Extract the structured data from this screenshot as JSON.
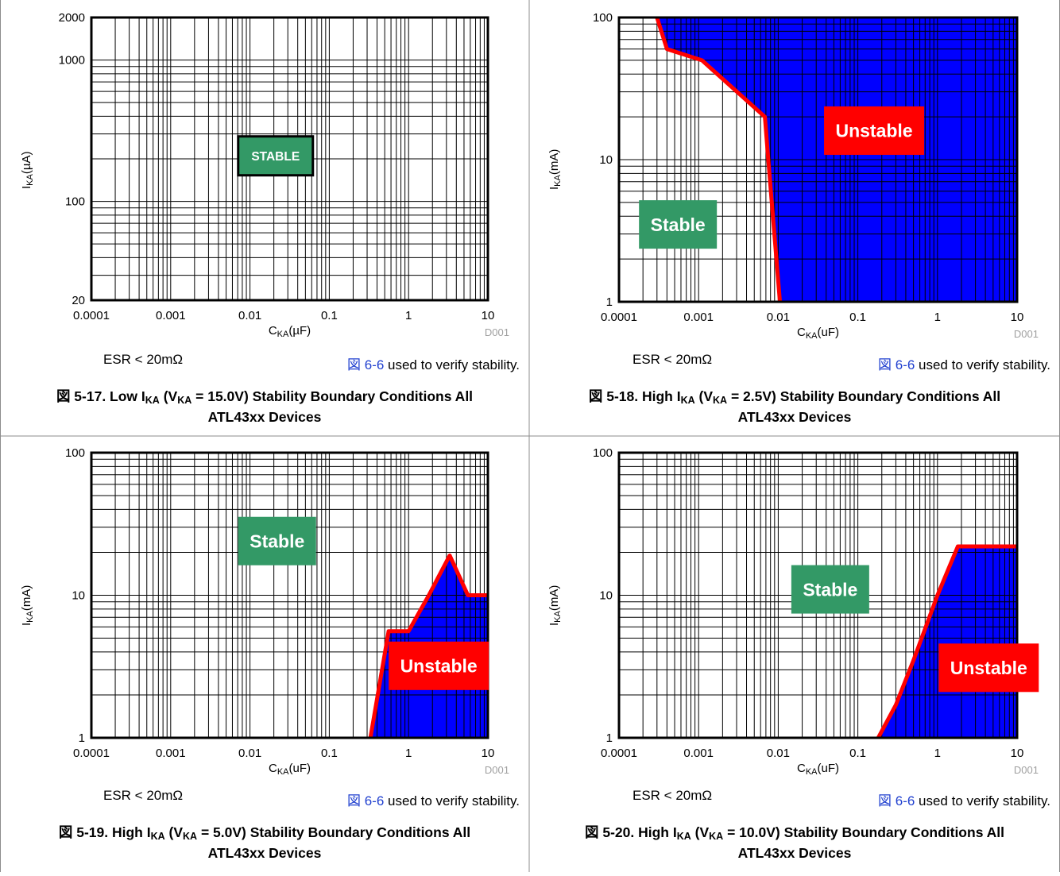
{
  "chart_data": [
    {
      "type": "area",
      "title_prefix": "図 5-17. Low I",
      "title_sub1": "KA",
      "title_mid": " (V",
      "title_sub2": "KA",
      "title_suffix": " = 15.0V) Stability Boundary Conditions All",
      "title_line2": "ATL43xx Devices",
      "xlabel_main": "C",
      "xlabel_sub": "KA",
      "xlabel_unit": "(µF)",
      "ylabel_main": "I",
      "ylabel_sub": "KA",
      "ylabel_unit": "(µA)",
      "x_scale": "log",
      "y_scale": "log",
      "xlim": [
        0.0001,
        10
      ],
      "ylim": [
        20,
        2000
      ],
      "x_ticks": [
        0.0001,
        0.001,
        0.01,
        0.1,
        1,
        10
      ],
      "x_tick_labels": [
        "0.0001",
        "0.001",
        "0.01",
        "0.1",
        "1",
        "10"
      ],
      "y_ticks": [
        20,
        100,
        1000,
        2000
      ],
      "y_tick_labels": [
        "20",
        "100",
        "1000",
        "2000"
      ],
      "unstable_boundary": [],
      "region_labels": [
        {
          "text": "STABLE",
          "style": "outlined",
          "x": 0.021,
          "y": 210
        }
      ],
      "grid": true,
      "watermark": "D001",
      "footnote_left": "ESR < 20mΩ",
      "footnote_ref": "図 6-6",
      "footnote_right": " used to verify stability."
    },
    {
      "type": "area",
      "title_prefix": "図 5-18. High I",
      "title_sub1": "KA",
      "title_mid": " (V",
      "title_sub2": "KA",
      "title_suffix": " = 2.5V) Stability Boundary Conditions All",
      "title_line2": "ATL43xx Devices",
      "xlabel_main": "C",
      "xlabel_sub": "KA",
      "xlabel_unit": "(uF)",
      "ylabel_main": "I",
      "ylabel_sub": "KA",
      "ylabel_unit": "(mA)",
      "x_scale": "log",
      "y_scale": "log",
      "xlim": [
        0.0001,
        10
      ],
      "ylim": [
        1,
        100
      ],
      "x_ticks": [
        0.0001,
        0.001,
        0.01,
        0.1,
        1,
        10
      ],
      "x_tick_labels": [
        "0.0001",
        "0.001",
        "0.01",
        "0.1",
        "1",
        "10"
      ],
      "y_ticks": [
        1,
        10,
        100
      ],
      "y_tick_labels": [
        "1",
        "10",
        "100"
      ],
      "unstable_fill_to": "top",
      "unstable_boundary": [
        [
          0.0003,
          100
        ],
        [
          0.0004,
          60
        ],
        [
          0.0011,
          50
        ],
        [
          0.0068,
          20
        ],
        [
          0.0075,
          10
        ],
        [
          0.0105,
          1
        ]
      ],
      "region_labels": [
        {
          "text": "Unstable",
          "style": "red",
          "x": 0.16,
          "y": 16
        },
        {
          "text": "Stable",
          "style": "green",
          "x": 0.00055,
          "y": 3.5
        }
      ],
      "grid": true,
      "watermark": "D001",
      "footnote_left": "ESR < 20mΩ",
      "footnote_ref": "図 6-6",
      "footnote_right": " used to verify stability."
    },
    {
      "type": "area",
      "title_prefix": "図 5-19. High I",
      "title_sub1": "KA",
      "title_mid": " (V",
      "title_sub2": "KA",
      "title_suffix": " = 5.0V) Stability Boundary Conditions All",
      "title_line2": "ATL43xx Devices",
      "xlabel_main": "C",
      "xlabel_sub": "KA",
      "xlabel_unit": "(uF)",
      "ylabel_main": "I",
      "ylabel_sub": "KA",
      "ylabel_unit": "(mA)",
      "x_scale": "log",
      "y_scale": "log",
      "xlim": [
        0.0001,
        10
      ],
      "ylim": [
        1,
        100
      ],
      "x_ticks": [
        0.0001,
        0.001,
        0.01,
        0.1,
        1,
        10
      ],
      "x_tick_labels": [
        "0.0001",
        "0.001",
        "0.01",
        "0.1",
        "1",
        "10"
      ],
      "y_ticks": [
        1,
        10,
        100
      ],
      "y_tick_labels": [
        "1",
        "10",
        "100"
      ],
      "unstable_fill_to": "bottom",
      "unstable_boundary": [
        [
          0.33,
          1
        ],
        [
          0.56,
          5.6
        ],
        [
          1.0,
          5.6
        ],
        [
          1.8,
          10
        ],
        [
          3.3,
          19
        ],
        [
          5.6,
          10
        ],
        [
          10,
          10
        ]
      ],
      "region_labels": [
        {
          "text": "Stable",
          "style": "green",
          "x": 0.022,
          "y": 24
        },
        {
          "text": "Unstable",
          "style": "red",
          "x": 2.4,
          "y": 3.2
        }
      ],
      "grid": true,
      "watermark": "D001",
      "footnote_left": "ESR < 20mΩ",
      "footnote_ref": "図 6-6",
      "footnote_right": " used to verify stability."
    },
    {
      "type": "area",
      "title_prefix": "図 5-20. High I",
      "title_sub1": "KA",
      "title_mid": " (V",
      "title_sub2": "KA",
      "title_suffix": " = 10.0V) Stability Boundary Conditions All",
      "title_line2": "ATL43xx Devices",
      "xlabel_main": "C",
      "xlabel_sub": "KA",
      "xlabel_unit": "(uF)",
      "ylabel_main": "I",
      "ylabel_sub": "KA",
      "ylabel_unit": "(mA)",
      "x_scale": "log",
      "y_scale": "log",
      "xlim": [
        0.0001,
        10
      ],
      "ylim": [
        1,
        100
      ],
      "x_ticks": [
        0.0001,
        0.001,
        0.01,
        0.1,
        1,
        10
      ],
      "x_tick_labels": [
        "0.0001",
        "0.001",
        "0.01",
        "0.1",
        "1",
        "10"
      ],
      "y_ticks": [
        1,
        10,
        100
      ],
      "y_tick_labels": [
        "1",
        "10",
        "100"
      ],
      "unstable_fill_to": "bottom",
      "unstable_boundary": [
        [
          0.18,
          1
        ],
        [
          0.3,
          1.7
        ],
        [
          0.5,
          3.5
        ],
        [
          1.0,
          10
        ],
        [
          1.8,
          22
        ],
        [
          10,
          22
        ]
      ],
      "region_labels": [
        {
          "text": "Stable",
          "style": "green",
          "x": 0.045,
          "y": 11
        },
        {
          "text": "Unstable",
          "style": "red",
          "x": 4.4,
          "y": 3.1
        }
      ],
      "grid": true,
      "watermark": "D001",
      "footnote_left": "ESR < 20mΩ",
      "footnote_ref": "図 6-6",
      "footnote_right": " used to verify stability."
    }
  ],
  "colors": {
    "unstable_fill": "#0000ff",
    "boundary_line": "#ff0000",
    "stable_box": "#339966",
    "unstable_box": "#ff0000",
    "gridline": "#000000",
    "reference_link": "#1f3fcf",
    "watermark": "#a0a0a0",
    "cell_border": "#8c8c8c"
  }
}
